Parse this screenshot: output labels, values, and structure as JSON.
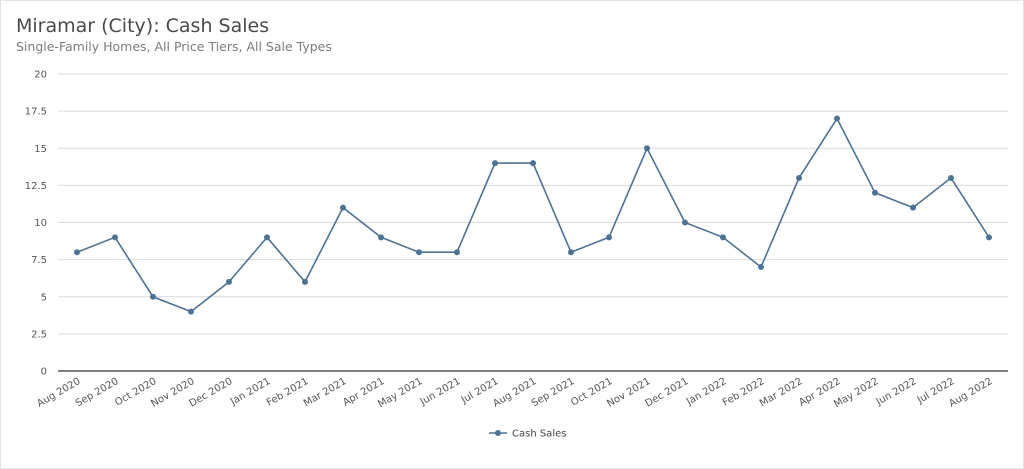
{
  "header": {
    "title": "Miramar (City): Cash Sales",
    "subtitle": "Single-Family Homes, All Price Tiers, All Sale Types"
  },
  "colors": {
    "series": "#4e7294",
    "grid": "#d9d9d9",
    "axis": "#333333"
  },
  "chart_data": {
    "type": "line",
    "title": "Miramar (City): Cash Sales",
    "subtitle": "Single-Family Homes, All Price Tiers, All Sale Types",
    "xlabel": "",
    "ylabel": "",
    "ylim": [
      0,
      20
    ],
    "yticks": [
      "0",
      "2.5",
      "5",
      "7.5",
      "10",
      "12.5",
      "15",
      "17.5",
      "20"
    ],
    "grid": true,
    "legend_position": "bottom",
    "categories": [
      "Aug 2020",
      "Sep 2020",
      "Oct 2020",
      "Nov 2020",
      "Dec 2020",
      "Jan 2021",
      "Feb 2021",
      "Mar 2021",
      "Apr 2021",
      "May 2021",
      "Jun 2021",
      "Jul 2021",
      "Aug 2021",
      "Sep 2021",
      "Oct 2021",
      "Nov 2021",
      "Dec 2021",
      "Jan 2022",
      "Feb 2022",
      "Mar 2022",
      "Apr 2022",
      "May 2022",
      "Jun 2022",
      "Jul 2022",
      "Aug 2022"
    ],
    "series": [
      {
        "name": "Cash Sales",
        "values": [
          8,
          9,
          5,
          4,
          6,
          9,
          6,
          11,
          9,
          8,
          8,
          14,
          14,
          8,
          9,
          15,
          10,
          9,
          7,
          13,
          17,
          12,
          11,
          13,
          9
        ]
      }
    ]
  }
}
